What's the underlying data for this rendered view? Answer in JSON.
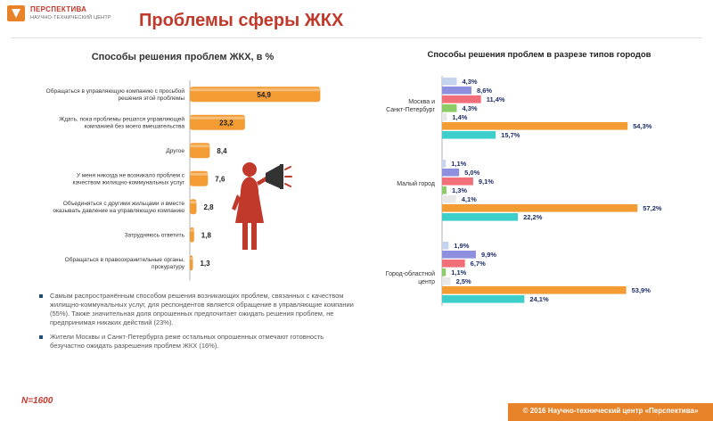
{
  "header": {
    "logo_line1": "ПЕРСПЕКТИВА",
    "logo_line2": "НАУЧНО-ТЕХНИЧЕСКИЙ ЦЕНТР",
    "title": "Проблемы сферы ЖКХ"
  },
  "chart_data": [
    {
      "type": "bar",
      "orientation": "horizontal",
      "title": "Способы решения проблем ЖКХ, в %",
      "categories": [
        "Обращаться в управляющую компанию с просьбой решения этой проблемы",
        "Ждать, пока проблемы решатся управляющей компанией без моего вмешательства",
        "Другое",
        "У меня никогда не возникало проблем с качеством жилищно-коммунальных услуг",
        "Объединяться с другими жильцами и вместе оказывать давление на управляющую компанию",
        "Затрудняюсь ответить",
        "Обращаться в правоохранительные органы, прокуратуру"
      ],
      "values": [
        54.9,
        23.2,
        8.4,
        7.6,
        2.8,
        1.8,
        1.3
      ],
      "value_labels": [
        "54,9",
        "23,2",
        "8,4",
        "7,6",
        "2,8",
        "1,8",
        "1,3"
      ],
      "xlim": [
        0,
        60
      ],
      "bar_color": "#f39c34",
      "legend": "none"
    },
    {
      "type": "bar",
      "orientation": "horizontal",
      "title": "Способы решения проблем в разрезе типов городов",
      "groups": [
        "Москва и Санкт-Петербург",
        "Малый город",
        "Город-областной центр"
      ],
      "series": [
        {
          "color": "#c5d3ef",
          "values": [
            4.3,
            1.1,
            1.9
          ],
          "labels": [
            "4,3%",
            "1,1%",
            "1,9%"
          ]
        },
        {
          "color": "#8f8fe0",
          "values": [
            8.6,
            5.0,
            9.9
          ],
          "labels": [
            "8,6%",
            "5,0%",
            "9,9%"
          ]
        },
        {
          "color": "#f06f78",
          "values": [
            11.4,
            9.1,
            6.7
          ],
          "labels": [
            "11,4%",
            "9,1%",
            "6,7%"
          ]
        },
        {
          "color": "#8ccc66",
          "values": [
            4.3,
            1.3,
            1.1
          ],
          "labels": [
            "4,3%",
            "1,3%",
            "1,1%"
          ]
        },
        {
          "color": "#e8e8e8",
          "values": [
            1.4,
            4.1,
            2.5
          ],
          "labels": [
            "1,4%",
            "4,1%",
            "2,5%"
          ]
        },
        {
          "color": "#f39c34",
          "values": [
            54.3,
            57.2,
            53.9
          ],
          "labels": [
            "54,3%",
            "57,2%",
            "53,9%"
          ]
        },
        {
          "color": "#3ecfcb",
          "values": [
            15.7,
            22.2,
            24.1
          ],
          "labels": [
            "15,7%",
            "22,2%",
            "24,1%"
          ]
        }
      ],
      "xlim": [
        0,
        60
      ]
    }
  ],
  "bullets": [
    "Самым распространённым способом решения возникающих проблем, связанных с качеством жилищно-коммунальных услуг, для респондентов является обращение в управляющие компании (55%). Также значительная доля опрошенных предпочитает ожидать решения проблем, не предпринимая никаких действий (23%).",
    "Жители Москвы и Санкт-Петербурга реже остальных опрошенных отмечают готовность безучастно ожидать разрешения проблем ЖКХ (16%)."
  ],
  "sample": "N=1600",
  "footer": "© 2016 Научно-технический центр «Перспектива»",
  "icons": {
    "figure": "woman-megaphone-icon"
  },
  "colors": {
    "accent": "#c0392b",
    "orange": "#e8832a"
  }
}
